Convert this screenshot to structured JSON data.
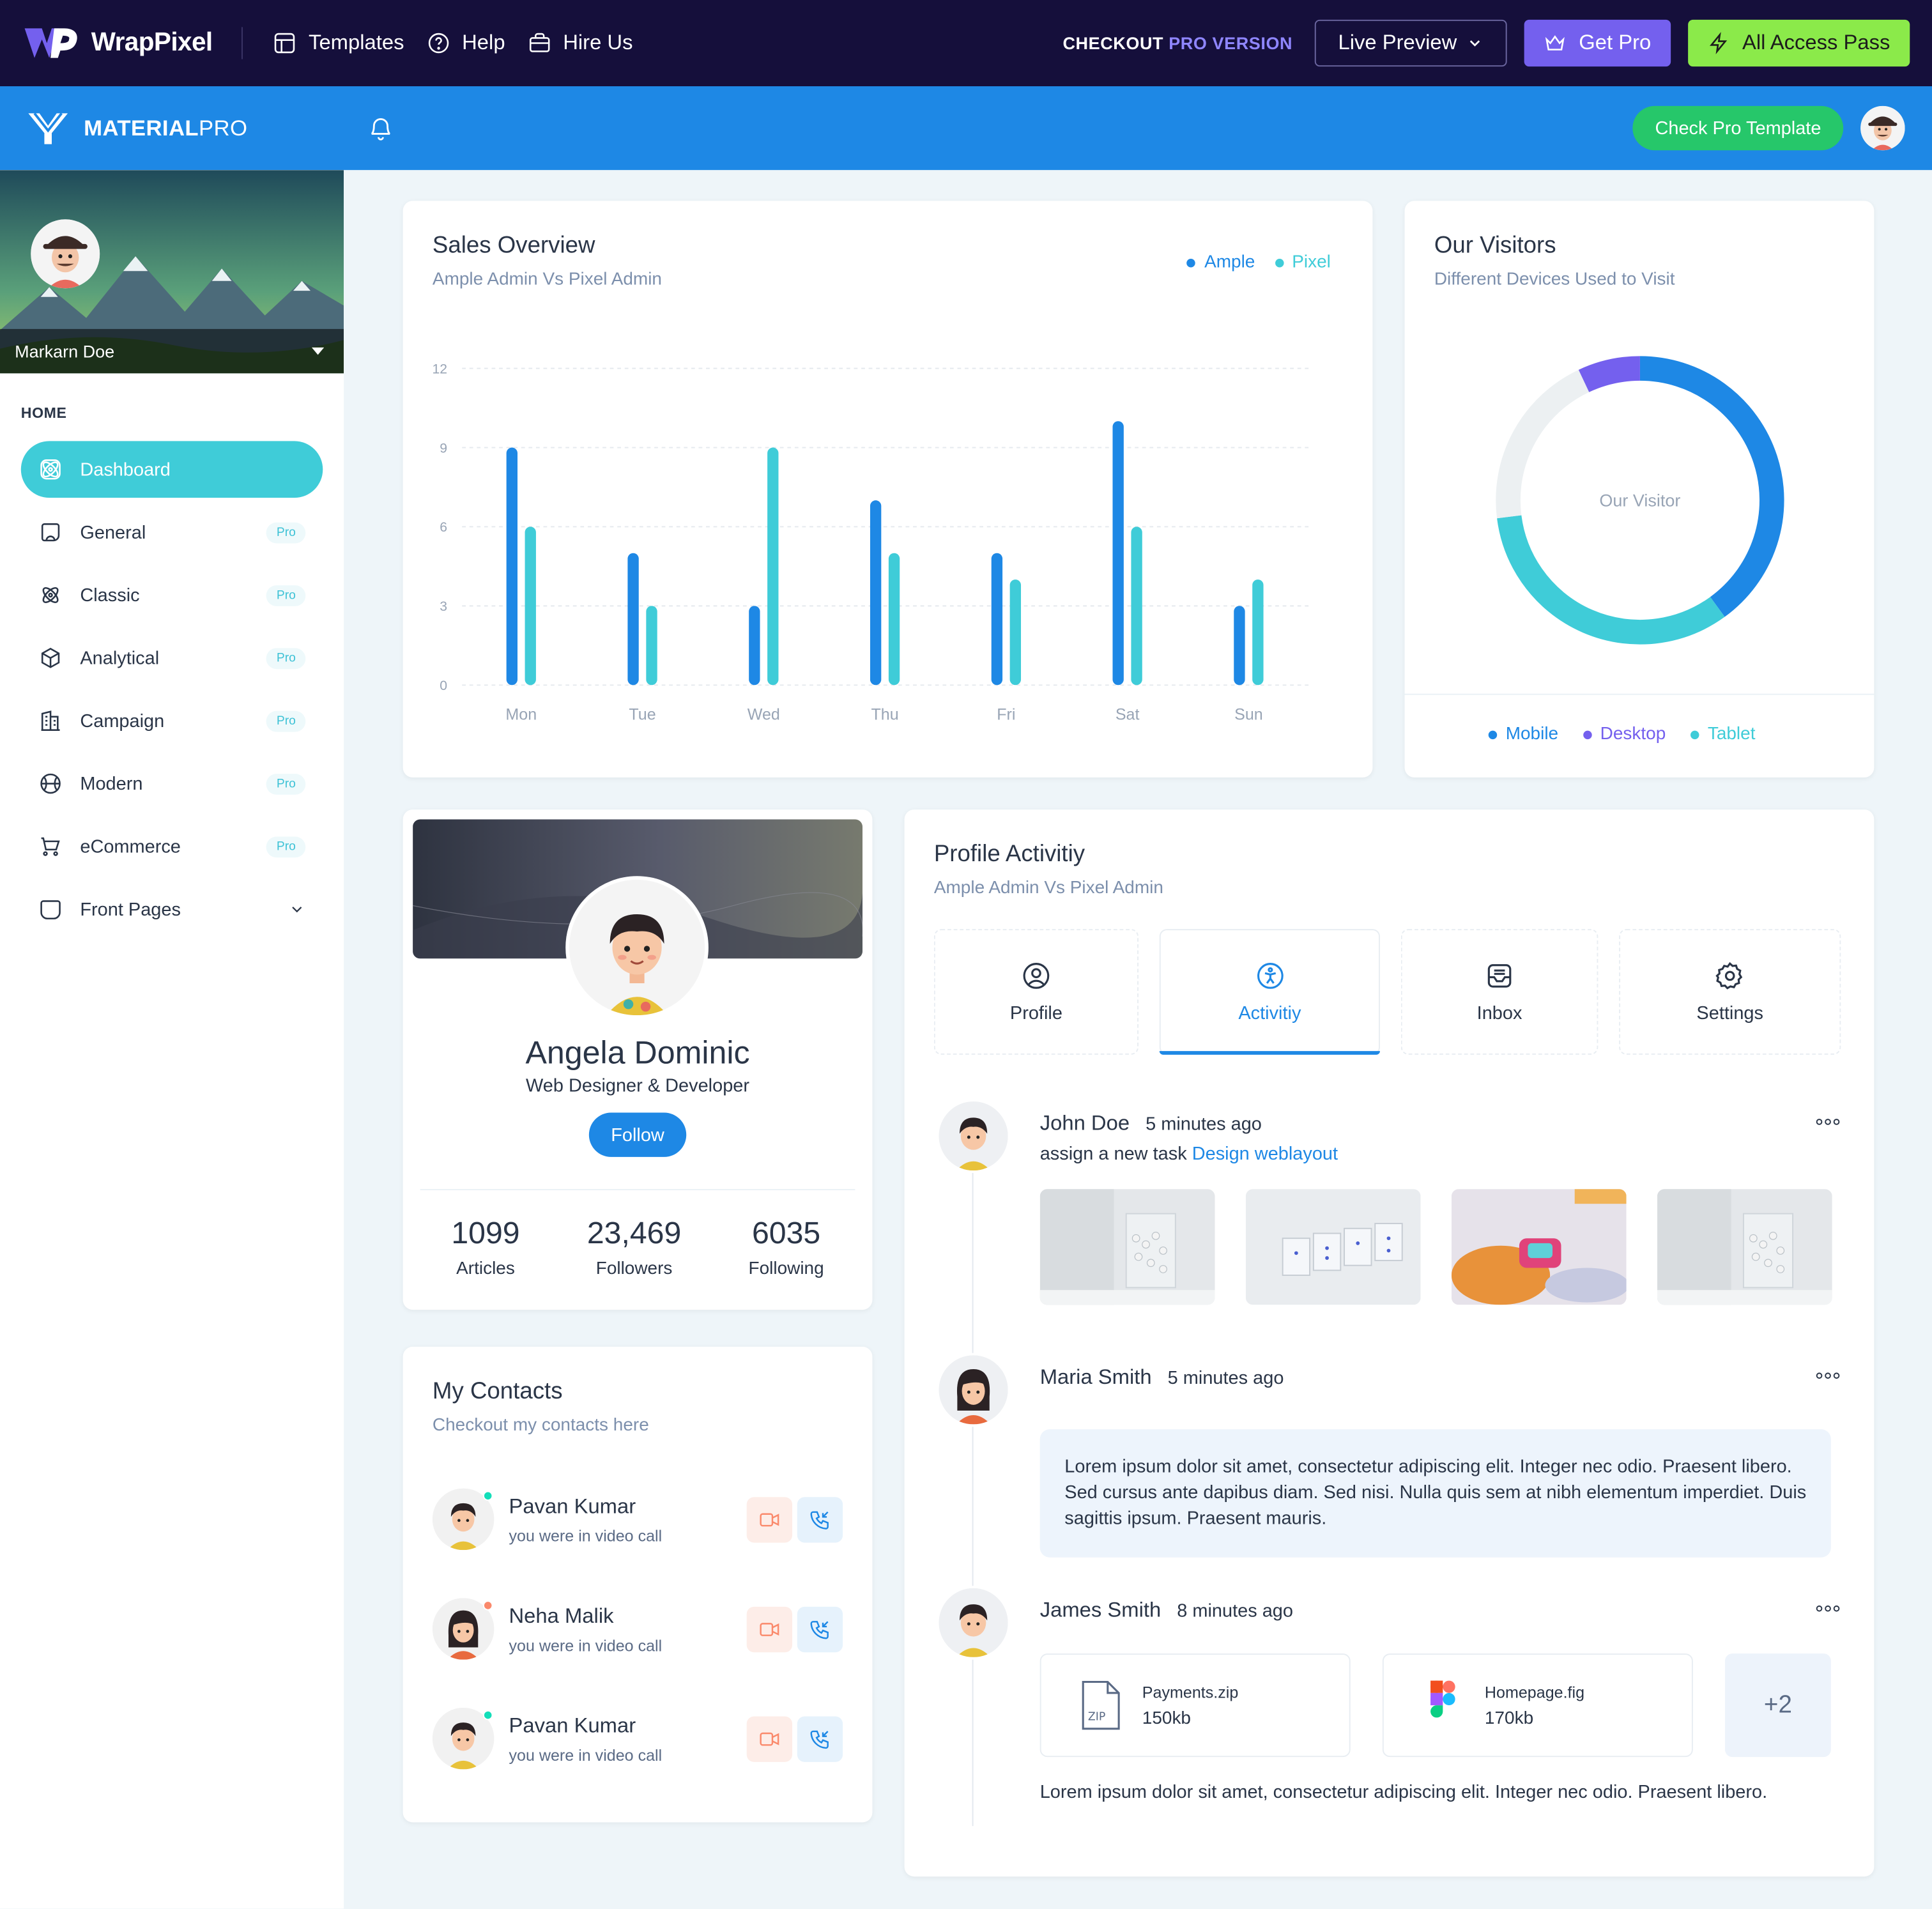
{
  "promo_bar": {
    "brand": "WrapPixel",
    "nav": [
      {
        "label": "Templates",
        "icon": "layout-icon"
      },
      {
        "label": "Help",
        "icon": "help-circle-icon"
      },
      {
        "label": "Hire Us",
        "icon": "briefcase-icon"
      }
    ],
    "checkout_prefix": "CHECKOUT",
    "checkout_accent": "PRO VERSION",
    "live_preview": "Live Preview",
    "get_pro": "Get Pro",
    "all_access": "All Access Pass"
  },
  "header": {
    "brand_bold": "MATERIAL",
    "brand_light": "PRO",
    "check_pro": "Check Pro Template"
  },
  "sidebar": {
    "user_name": "Markarn Doe",
    "section": "HOME",
    "items": [
      {
        "label": "Dashboard",
        "icon": "atom-icon",
        "active": true,
        "badge": ""
      },
      {
        "label": "General",
        "icon": "aperture-icon",
        "badge": "Pro"
      },
      {
        "label": "Classic",
        "icon": "atom-2-icon",
        "badge": "Pro"
      },
      {
        "label": "Analytical",
        "icon": "box-icon",
        "badge": "Pro"
      },
      {
        "label": "Campaign",
        "icon": "building-icon",
        "badge": "Pro"
      },
      {
        "label": "Modern",
        "icon": "ball-icon",
        "badge": "Pro"
      },
      {
        "label": "eCommerce",
        "icon": "cart-icon",
        "badge": "Pro"
      },
      {
        "label": "Front Pages",
        "icon": "app-window-icon",
        "badge": ""
      }
    ]
  },
  "sales": {
    "title": "Sales Overview",
    "subtitle": "Ample Admin Vs Pixel Admin",
    "legend": [
      {
        "name": "Ample",
        "color": "#1e88e5"
      },
      {
        "name": "Pixel",
        "color": "#3fccd8"
      }
    ]
  },
  "chart_data": {
    "type": "bar",
    "categories": [
      "Mon",
      "Tue",
      "Wed",
      "Thu",
      "Fri",
      "Sat",
      "Sun"
    ],
    "series": [
      {
        "name": "Ample",
        "values": [
          9,
          5,
          3,
          7,
          5,
          10,
          3
        ],
        "color": "#1e88e5"
      },
      {
        "name": "Pixel",
        "values": [
          6,
          3,
          9,
          5,
          4,
          6,
          4
        ],
        "color": "#3fccd8"
      }
    ],
    "yticks": [
      0,
      3,
      6,
      9,
      12
    ],
    "ylim": [
      0,
      12
    ],
    "grid": true,
    "legend_position": "top-right"
  },
  "visitors": {
    "title": "Our Visitors",
    "subtitle": "Different Devices Used to Visit",
    "center_label": "Our Visitor",
    "donut": [
      {
        "name": "Mobile",
        "value": 40,
        "color": "#1e88e5"
      },
      {
        "name": "Tablet",
        "value": 33,
        "color": "#3fccd8"
      },
      {
        "name": "",
        "value": 20,
        "color": "#ecf0f2"
      },
      {
        "name": "Desktop",
        "value": 7,
        "color": "#7460ee"
      }
    ],
    "legend": [
      {
        "name": "Mobile",
        "color": "#1e88e5"
      },
      {
        "name": "Desktop",
        "color": "#7460ee"
      },
      {
        "name": "Tablet",
        "color": "#3fccd8"
      }
    ]
  },
  "profile": {
    "name": "Angela Dominic",
    "role": "Web Designer & Developer",
    "follow": "Follow",
    "stats": [
      {
        "value": "1099",
        "label": "Articles"
      },
      {
        "value": "23,469",
        "label": "Followers"
      },
      {
        "value": "6035",
        "label": "Following"
      }
    ]
  },
  "contacts": {
    "title": "My Contacts",
    "subtitle": "Checkout my contacts here",
    "items": [
      {
        "name": "Pavan Kumar",
        "note": "you were in video call",
        "status_color": "#13deb9"
      },
      {
        "name": "Neha Malik",
        "note": "you were in video call",
        "status_color": "#fa896b"
      },
      {
        "name": "Pavan Kumar",
        "note": "you were in video call",
        "status_color": "#13deb9"
      }
    ]
  },
  "activity": {
    "title": "Profile Activitiy",
    "subtitle": "Ample Admin Vs Pixel Admin",
    "tabs": [
      {
        "label": "Profile",
        "icon": "user-circle-icon"
      },
      {
        "label": "Activitiy",
        "icon": "accessible-icon",
        "active": true
      },
      {
        "label": "Inbox",
        "icon": "inbox-icon"
      },
      {
        "label": "Settings",
        "icon": "settings-icon"
      }
    ],
    "items": [
      {
        "name": "John Doe",
        "time": "5 minutes ago",
        "desc": "assign a new task",
        "link": "Design weblayout"
      },
      {
        "name": "Maria Smith",
        "time": "5 minutes ago",
        "text": "Lorem ipsum dolor sit amet, consectetur adipiscing elit. Integer nec odio. Praesent libero. Sed cursus ante dapibus diam. Sed nisi. Nulla quis sem at nibh elementum imperdiet. Duis sagittis ipsum. Praesent mauris."
      },
      {
        "name": "James Smith",
        "time": "8 minutes ago",
        "files": [
          {
            "name": "Payments.zip",
            "size": "150kb",
            "icon": "zip-file-icon"
          },
          {
            "name": "Homepage.fig",
            "size": "170kb",
            "icon": "figma-icon"
          }
        ],
        "more": "+2",
        "text": "Lorem ipsum dolor sit amet, consectetur adipiscing elit. Integer nec odio. Praesent libero."
      }
    ]
  }
}
